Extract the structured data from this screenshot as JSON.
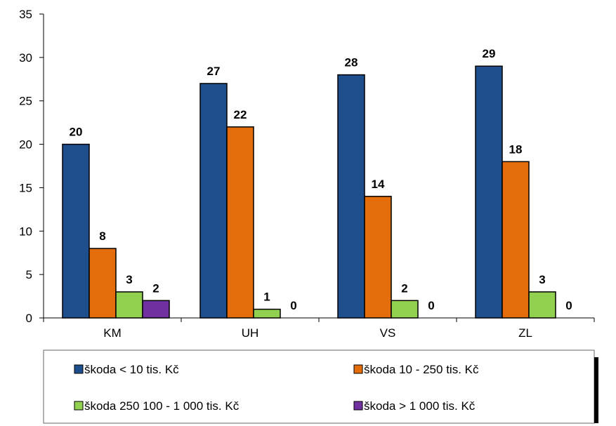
{
  "chart_data": {
    "type": "bar",
    "title": "",
    "xlabel": "",
    "ylabel": "",
    "categories": [
      "KM",
      "UH",
      "VS",
      "ZL"
    ],
    "ylim": [
      0,
      35
    ],
    "yticks": [
      0,
      5,
      10,
      15,
      20,
      25,
      30,
      35
    ],
    "grid": false,
    "legend_position": "bottom",
    "series": [
      {
        "name": "škoda < 10 tis. Kč",
        "color": "#1F4E8C",
        "values": [
          20,
          27,
          28,
          29
        ]
      },
      {
        "name": "škoda 10 - 250 tis. Kč",
        "color": "#E46C0A",
        "values": [
          8,
          22,
          14,
          18
        ]
      },
      {
        "name": "škoda 250 100 - 1 000 tis. Kč",
        "color": "#92D050",
        "values": [
          3,
          1,
          2,
          3
        ]
      },
      {
        "name": "škoda > 1 000 tis. Kč",
        "color": "#7030A0",
        "values": [
          2,
          0,
          0,
          0
        ]
      }
    ]
  }
}
